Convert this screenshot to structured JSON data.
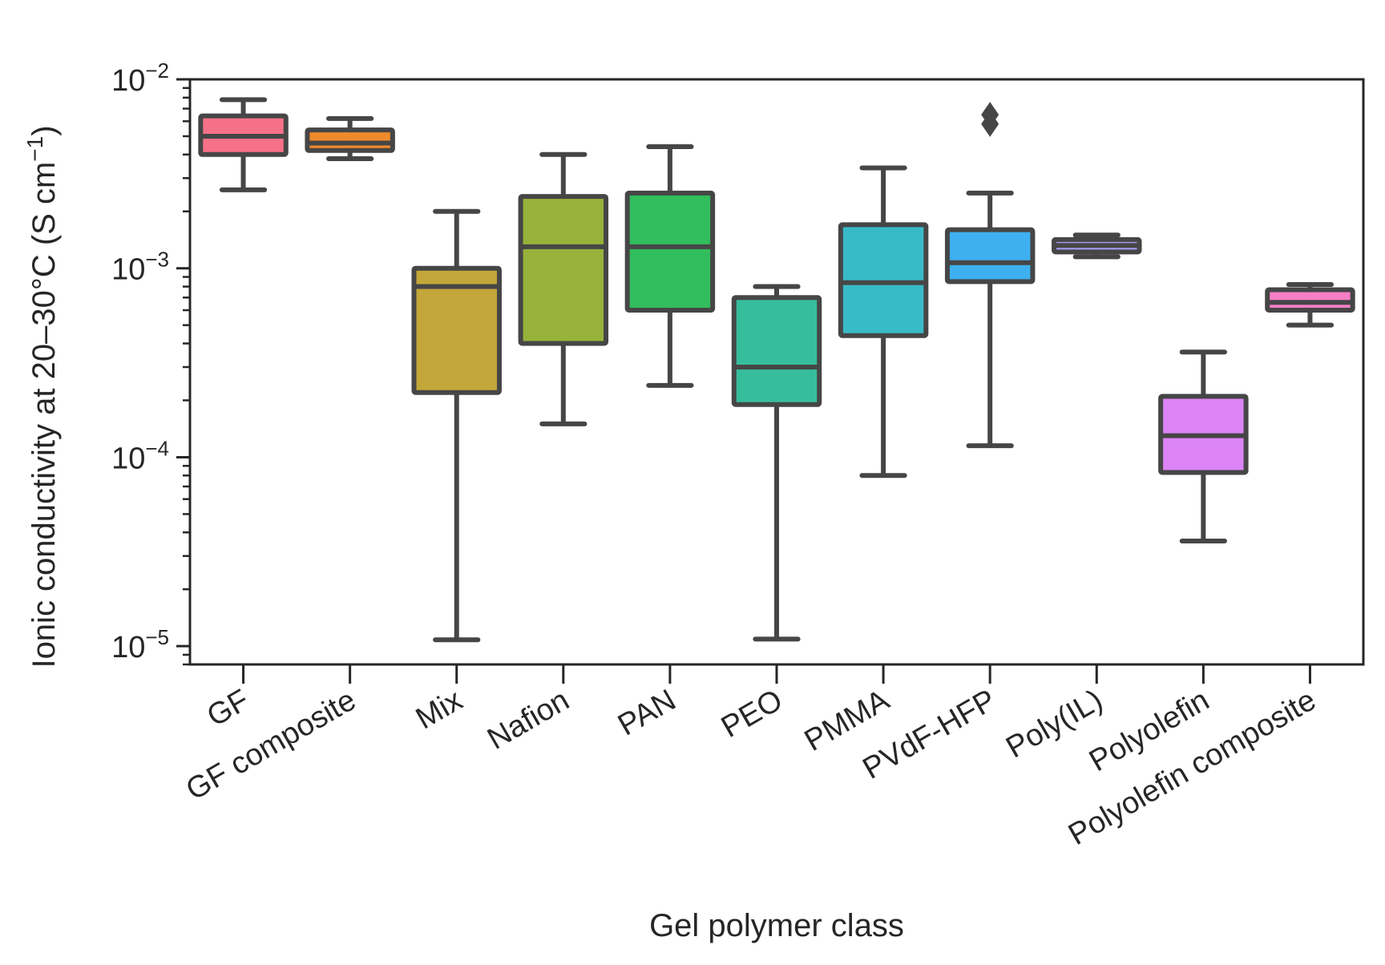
{
  "chart_data": {
    "type": "box",
    "title": "",
    "xlabel": "Gel polymer class",
    "ylabel": "Ionic conductivity at 20–30°C (S cm",
    "ylabel_sup": "−1",
    "ylabel_close": ")",
    "yscale": "log",
    "ylim": [
      8e-06,
      0.01
    ],
    "y_ticks": [
      {
        "value": 1e-05,
        "base": "10",
        "exp": "−5"
      },
      {
        "value": 0.0001,
        "base": "10",
        "exp": "−4"
      },
      {
        "value": 0.001,
        "base": "10",
        "exp": "−3"
      },
      {
        "value": 0.01,
        "base": "10",
        "exp": "−2"
      }
    ],
    "grid": false,
    "legend": "none",
    "box_edge_color": "#464646",
    "categories": [
      "GF",
      "GF composite",
      "Mix",
      "Nafion",
      "PAN",
      "PEO",
      "PMMA",
      "PVdF-HFP",
      "Poly(IL)",
      "Polyolefin",
      "Polyolefin composite"
    ],
    "boxes": [
      {
        "label": "GF",
        "color": "#f77189",
        "whisker_low": 0.0026,
        "q1": 0.004,
        "median": 0.005,
        "q3": 0.0064,
        "whisker_high": 0.0078,
        "outliers": []
      },
      {
        "label": "GF composite",
        "color": "#ee8a2c",
        "whisker_low": 0.0038,
        "q1": 0.0042,
        "median": 0.0046,
        "q3": 0.0054,
        "whisker_high": 0.0062,
        "outliers": []
      },
      {
        "label": "Mix",
        "color": "#c4a73a",
        "whisker_low": 1.08e-05,
        "q1": 0.00022,
        "median": 0.0008,
        "q3": 0.001,
        "whisker_high": 0.002,
        "outliers": []
      },
      {
        "label": "Nafion",
        "color": "#97b33a",
        "whisker_low": 0.00015,
        "q1": 0.0004,
        "median": 0.0013,
        "q3": 0.0024,
        "whisker_high": 0.004,
        "outliers": []
      },
      {
        "label": "PAN",
        "color": "#32be5c",
        "whisker_low": 0.00024,
        "q1": 0.0006,
        "median": 0.0013,
        "q3": 0.0025,
        "whisker_high": 0.0044,
        "outliers": []
      },
      {
        "label": "PEO",
        "color": "#36be9c",
        "whisker_low": 1.09e-05,
        "q1": 0.00019,
        "median": 0.0003,
        "q3": 0.0007,
        "whisker_high": 0.0008,
        "outliers": []
      },
      {
        "label": "PMMA",
        "color": "#38bbc7",
        "whisker_low": 8e-05,
        "q1": 0.00044,
        "median": 0.00084,
        "q3": 0.0017,
        "whisker_high": 0.0034,
        "outliers": []
      },
      {
        "label": "PVdF-HFP",
        "color": "#3eb0f0",
        "whisker_low": 0.000115,
        "q1": 0.00085,
        "median": 0.00107,
        "q3": 0.0016,
        "whisker_high": 0.0025,
        "outliers": [
          0.0058,
          0.0065
        ]
      },
      {
        "label": "Poly(IL)",
        "color": "#a49ef2",
        "whisker_low": 0.00115,
        "q1": 0.00122,
        "median": 0.00132,
        "q3": 0.00142,
        "whisker_high": 0.0015,
        "outliers": []
      },
      {
        "label": "Polyolefin",
        "color": "#dc84f5",
        "whisker_low": 3.6e-05,
        "q1": 8.3e-05,
        "median": 0.00013,
        "q3": 0.00021,
        "whisker_high": 0.00036,
        "outliers": []
      },
      {
        "label": "Polyolefin composite",
        "color": "#f67fc6",
        "whisker_low": 0.0005,
        "q1": 0.0006,
        "median": 0.00066,
        "q3": 0.00077,
        "whisker_high": 0.00082,
        "outliers": []
      }
    ]
  }
}
